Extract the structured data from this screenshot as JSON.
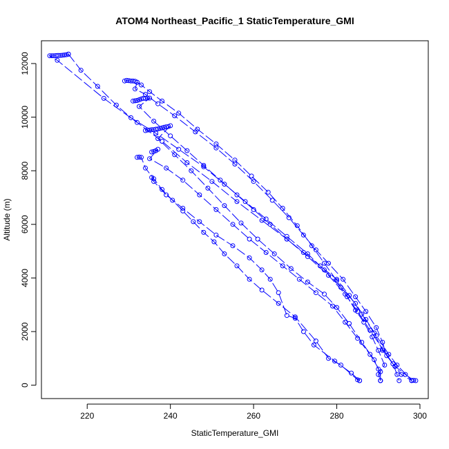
{
  "chart_data": {
    "type": "line",
    "title": "ATOM4 Northeast_Pacific_1 StaticTemperature_GMI",
    "xlabel": "StaticTemperature_GMI",
    "ylabel": "Altitude (m)",
    "xlim": [
      209,
      302
    ],
    "ylim": [
      -500,
      12850
    ],
    "xticks": [
      220,
      240,
      260,
      280,
      300
    ],
    "yticks": [
      0,
      2000,
      4000,
      6000,
      8000,
      10000,
      12000
    ],
    "grid": false,
    "color": "#0000ff",
    "series": [
      {
        "points": [
          [
            215.5,
            12350
          ],
          [
            215,
            12330
          ],
          [
            214.5,
            12320
          ],
          [
            214,
            12310
          ],
          [
            213.5,
            12300
          ],
          [
            213,
            12300
          ],
          [
            212.5,
            12295
          ],
          [
            212,
            12290
          ],
          [
            211.5,
            12290
          ],
          [
            211,
            12290
          ],
          [
            212.8,
            12120
          ],
          [
            224,
            10700
          ],
          [
            232,
            9800
          ],
          [
            238,
            9100
          ],
          [
            244,
            8300
          ],
          [
            250,
            7600
          ],
          [
            256,
            6850
          ],
          [
            262,
            6150
          ],
          [
            268,
            5450
          ],
          [
            273,
            4800
          ],
          [
            278,
            4100
          ],
          [
            282,
            3400
          ],
          [
            285,
            2750
          ],
          [
            288,
            2050
          ],
          [
            291,
            1350
          ],
          [
            294,
            700
          ],
          [
            296.5,
            400
          ],
          [
            298.5,
            180
          ],
          [
            299,
            170
          ]
        ]
      },
      {
        "points": [
          [
            215.5,
            12350
          ],
          [
            218.5,
            11750
          ],
          [
            222.5,
            11150
          ],
          [
            227,
            10450
          ],
          [
            230.5,
            9980
          ],
          [
            236.5,
            9400
          ],
          [
            242,
            8800
          ],
          [
            248,
            8150
          ],
          [
            253,
            7500
          ],
          [
            258,
            6850
          ],
          [
            263,
            6200
          ],
          [
            268,
            5550
          ],
          [
            273,
            4900
          ],
          [
            277,
            4300
          ],
          [
            281,
            3650
          ],
          [
            284.5,
            3050
          ],
          [
            287,
            2450
          ],
          [
            289.5,
            1850
          ],
          [
            292.5,
            1150
          ],
          [
            294.5,
            750
          ],
          [
            298,
            180
          ]
        ]
      },
      {
        "points": [
          [
            229,
            11350
          ],
          [
            229.5,
            11370
          ],
          [
            230,
            11360
          ],
          [
            230.5,
            11350
          ],
          [
            231,
            11350
          ],
          [
            231.5,
            11340
          ],
          [
            232,
            11300
          ],
          [
            231.5,
            11050
          ],
          [
            234,
            10850
          ],
          [
            237,
            10500
          ],
          [
            241,
            10050
          ],
          [
            246,
            9450
          ],
          [
            251,
            8850
          ],
          [
            255.5,
            8250
          ],
          [
            260,
            7600
          ],
          [
            264.5,
            6900
          ],
          [
            268.5,
            6250
          ],
          [
            272,
            5600
          ],
          [
            275,
            5050
          ],
          [
            278,
            4550
          ],
          [
            281.5,
            3950
          ],
          [
            284.5,
            3300
          ],
          [
            287,
            2750
          ],
          [
            289.5,
            2150
          ],
          [
            291,
            1600
          ],
          [
            292,
            1100
          ],
          [
            294,
            700
          ],
          [
            295.5,
            400
          ],
          [
            298,
            170
          ]
        ]
      },
      {
        "points": [
          [
            232,
            11300
          ],
          [
            233,
            11200
          ],
          [
            235,
            10950
          ],
          [
            238,
            10600
          ],
          [
            242,
            10150
          ],
          [
            246.5,
            9550
          ],
          [
            251,
            9000
          ],
          [
            255.5,
            8400
          ],
          [
            259.5,
            7800
          ],
          [
            263.5,
            7200
          ],
          [
            267,
            6600
          ],
          [
            270.5,
            5950
          ],
          [
            274,
            5200
          ],
          [
            277,
            4550
          ],
          [
            280,
            3900
          ],
          [
            282.5,
            3300
          ],
          [
            284.5,
            2800
          ],
          [
            286.5,
            2350
          ],
          [
            288.5,
            1800
          ],
          [
            290,
            1300
          ],
          [
            291.5,
            750
          ],
          [
            290,
            400
          ],
          [
            290.5,
            170
          ]
        ]
      },
      {
        "points": [
          [
            231,
            10600
          ],
          [
            231.5,
            10610
          ],
          [
            232,
            10620
          ],
          [
            232.5,
            10650
          ],
          [
            233,
            10680
          ],
          [
            233.5,
            10700
          ],
          [
            234,
            10700
          ],
          [
            234.5,
            10710
          ],
          [
            235,
            10710
          ],
          [
            232.5,
            10400
          ],
          [
            236,
            9850
          ],
          [
            240,
            9300
          ],
          [
            244,
            8750
          ],
          [
            248,
            8200
          ],
          [
            252,
            7650
          ],
          [
            256,
            7100
          ],
          [
            260,
            6550
          ],
          [
            264,
            6000
          ],
          [
            268,
            5450
          ],
          [
            272,
            4950
          ],
          [
            276,
            4450
          ],
          [
            280,
            3950
          ],
          [
            283,
            3350
          ],
          [
            286,
            2650
          ],
          [
            289,
            1950
          ],
          [
            291,
            1300
          ],
          [
            293.5,
            800
          ],
          [
            294.5,
            400
          ],
          [
            295,
            170
          ]
        ]
      },
      {
        "points": [
          [
            234,
            9500
          ],
          [
            234.5,
            9520
          ],
          [
            235,
            9520
          ],
          [
            235.5,
            9530
          ],
          [
            236,
            9530
          ],
          [
            236.5,
            9550
          ],
          [
            237,
            9560
          ],
          [
            237.5,
            9580
          ],
          [
            238,
            9600
          ],
          [
            238.5,
            9620
          ],
          [
            239,
            9640
          ],
          [
            239.5,
            9650
          ],
          [
            240,
            9680
          ],
          [
            237,
            9200
          ],
          [
            241,
            8600
          ],
          [
            245,
            8000
          ],
          [
            249,
            7350
          ],
          [
            253,
            6700
          ],
          [
            257,
            6050
          ],
          [
            261,
            5450
          ],
          [
            265,
            4900
          ],
          [
            269,
            4350
          ],
          [
            273,
            3850
          ],
          [
            277,
            3400
          ],
          [
            280,
            2900
          ],
          [
            283,
            2300
          ],
          [
            286,
            1600
          ],
          [
            289,
            950
          ],
          [
            290,
            600
          ],
          [
            290.5,
            170
          ]
        ]
      },
      {
        "points": [
          [
            235.5,
            8700
          ],
          [
            236,
            8720
          ],
          [
            236.5,
            8750
          ],
          [
            237,
            8800
          ],
          [
            235,
            8450
          ],
          [
            239,
            8100
          ],
          [
            243,
            7650
          ],
          [
            247,
            7100
          ],
          [
            251,
            6550
          ],
          [
            255,
            6000
          ],
          [
            259,
            5450
          ],
          [
            263,
            4950
          ],
          [
            267,
            4450
          ],
          [
            271,
            3950
          ],
          [
            275,
            3450
          ],
          [
            279,
            2950
          ],
          [
            282,
            2350
          ],
          [
            285,
            1750
          ],
          [
            288,
            1150
          ],
          [
            290.5,
            500
          ],
          [
            290.5,
            170
          ]
        ]
      },
      {
        "points": [
          [
            232,
            8500
          ],
          [
            232.5,
            8510
          ],
          [
            233,
            8500
          ],
          [
            234,
            8100
          ],
          [
            236,
            7700
          ],
          [
            238,
            7300
          ],
          [
            240.5,
            6900
          ],
          [
            243,
            6500
          ],
          [
            245.5,
            6100
          ],
          [
            248,
            5700
          ],
          [
            250.5,
            5350
          ],
          [
            253,
            4900
          ],
          [
            256,
            4450
          ],
          [
            259,
            3950
          ],
          [
            262,
            3550
          ],
          [
            266,
            3050
          ],
          [
            270,
            2550
          ],
          [
            275,
            1650
          ],
          [
            278,
            1000
          ],
          [
            281,
            750
          ],
          [
            285,
            200
          ],
          [
            285.5,
            170
          ]
        ]
      },
      {
        "points": [
          [
            235.5,
            7750
          ],
          [
            236,
            7600
          ],
          [
            239,
            7100
          ],
          [
            243,
            6600
          ],
          [
            247,
            6100
          ],
          [
            251,
            5600
          ],
          [
            255,
            5200
          ],
          [
            259,
            4750
          ],
          [
            262,
            4300
          ],
          [
            264,
            3950
          ],
          [
            266,
            3450
          ],
          [
            268,
            2600
          ],
          [
            270,
            2500
          ],
          [
            272,
            2000
          ],
          [
            274.5,
            1500
          ],
          [
            279.5,
            900
          ],
          [
            283.5,
            450
          ],
          [
            285.5,
            170
          ]
        ]
      }
    ]
  }
}
